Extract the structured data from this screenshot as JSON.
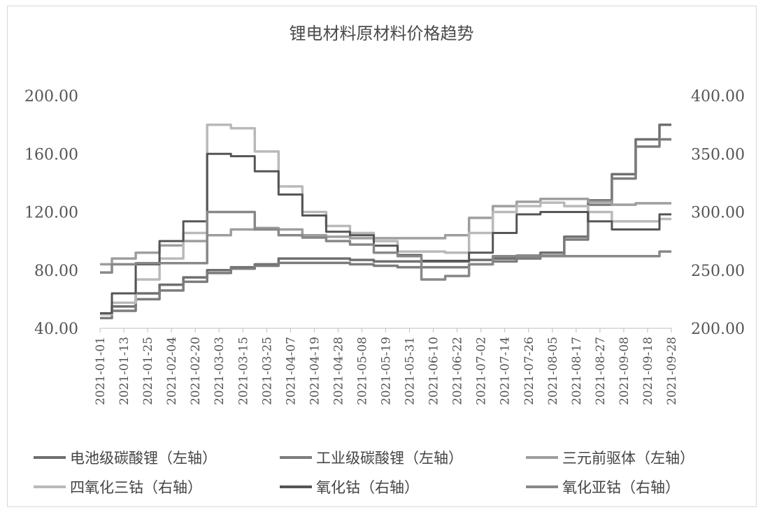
{
  "chart_data": {
    "type": "line",
    "title": "锂电材料原材料价格趋势",
    "x_ticks": [
      "2021-01-01",
      "2021-01-13",
      "2021-01-25",
      "2021-02-04",
      "2021-02-20",
      "2021-03-03",
      "2021-03-15",
      "2021-03-25",
      "2021-04-07",
      "2021-04-19",
      "2021-04-28",
      "2021-05-08",
      "2021-05-19",
      "2021-05-31",
      "2021-06-10",
      "2021-06-22",
      "2021-07-02",
      "2021-07-14",
      "2021-07-26",
      "2021-08-05",
      "2021-08-17",
      "2021-08-27",
      "2021-09-08",
      "2021-09-18",
      "2021-09-28"
    ],
    "y_left": {
      "min": 40,
      "max": 200,
      "ticks": [
        "200.00",
        "160.00",
        "120.00",
        "80.00",
        "40.00"
      ]
    },
    "y_right": {
      "min": 200,
      "max": 400,
      "ticks": [
        "400.00",
        "350.00",
        "300.00",
        "250.00",
        "200.00"
      ]
    },
    "grid": false,
    "legend_position": "bottom",
    "series": [
      {
        "name": "电池级碳酸锂（左轴）",
        "axis": "left",
        "color": "#6f6f6f",
        "values": [
          50,
          55,
          64,
          70,
          75,
          80,
          82,
          84,
          88,
          88,
          88,
          87,
          86,
          86,
          86,
          86,
          87,
          88,
          90,
          92,
          103,
          128,
          146,
          170,
          180
        ]
      },
      {
        "name": "工业级碳酸锂（左轴）",
        "axis": "left",
        "color": "#7c7c7c",
        "values": [
          47,
          52,
          60,
          66,
          72,
          78,
          81,
          83,
          85,
          85,
          85,
          84,
          83,
          82,
          82,
          82,
          84,
          86,
          88,
          90,
          101,
          125,
          143,
          165,
          170
        ]
      },
      {
        "name": "三元前驱体（左轴）",
        "axis": "left",
        "color": "#9e9e9e",
        "values": [
          84,
          88,
          92,
          97,
          100,
          104,
          108,
          109,
          108,
          104,
          103,
          102,
          102,
          102,
          102,
          104,
          116,
          124,
          127,
          129,
          129,
          127,
          125,
          126,
          126
        ]
      },
      {
        "name": "四氧化三钴（右轴）",
        "axis": "right",
        "color": "#b9b9b9",
        "values": [
          212,
          222,
          242,
          260,
          282,
          375,
          372,
          352,
          322,
          300,
          288,
          282,
          275,
          266,
          266,
          265,
          282,
          300,
          305,
          308,
          305,
          300,
          292,
          292,
          294
        ]
      },
      {
        "name": "氧化钴（右轴）",
        "axis": "right",
        "color": "#555555",
        "values": [
          213,
          230,
          255,
          275,
          292,
          350,
          348,
          335,
          315,
          297,
          283,
          280,
          271,
          263,
          258,
          258,
          265,
          282,
          298,
          300,
          300,
          292,
          285,
          285,
          298
        ]
      },
      {
        "name": "氧化亚钴（右轴）",
        "axis": "right",
        "color": "#888888",
        "values": [
          248,
          255,
          256,
          256,
          256,
          300,
          300,
          285,
          280,
          278,
          275,
          272,
          265,
          262,
          242,
          245,
          255,
          262,
          262,
          262,
          262,
          262,
          262,
          262,
          266
        ]
      }
    ]
  }
}
